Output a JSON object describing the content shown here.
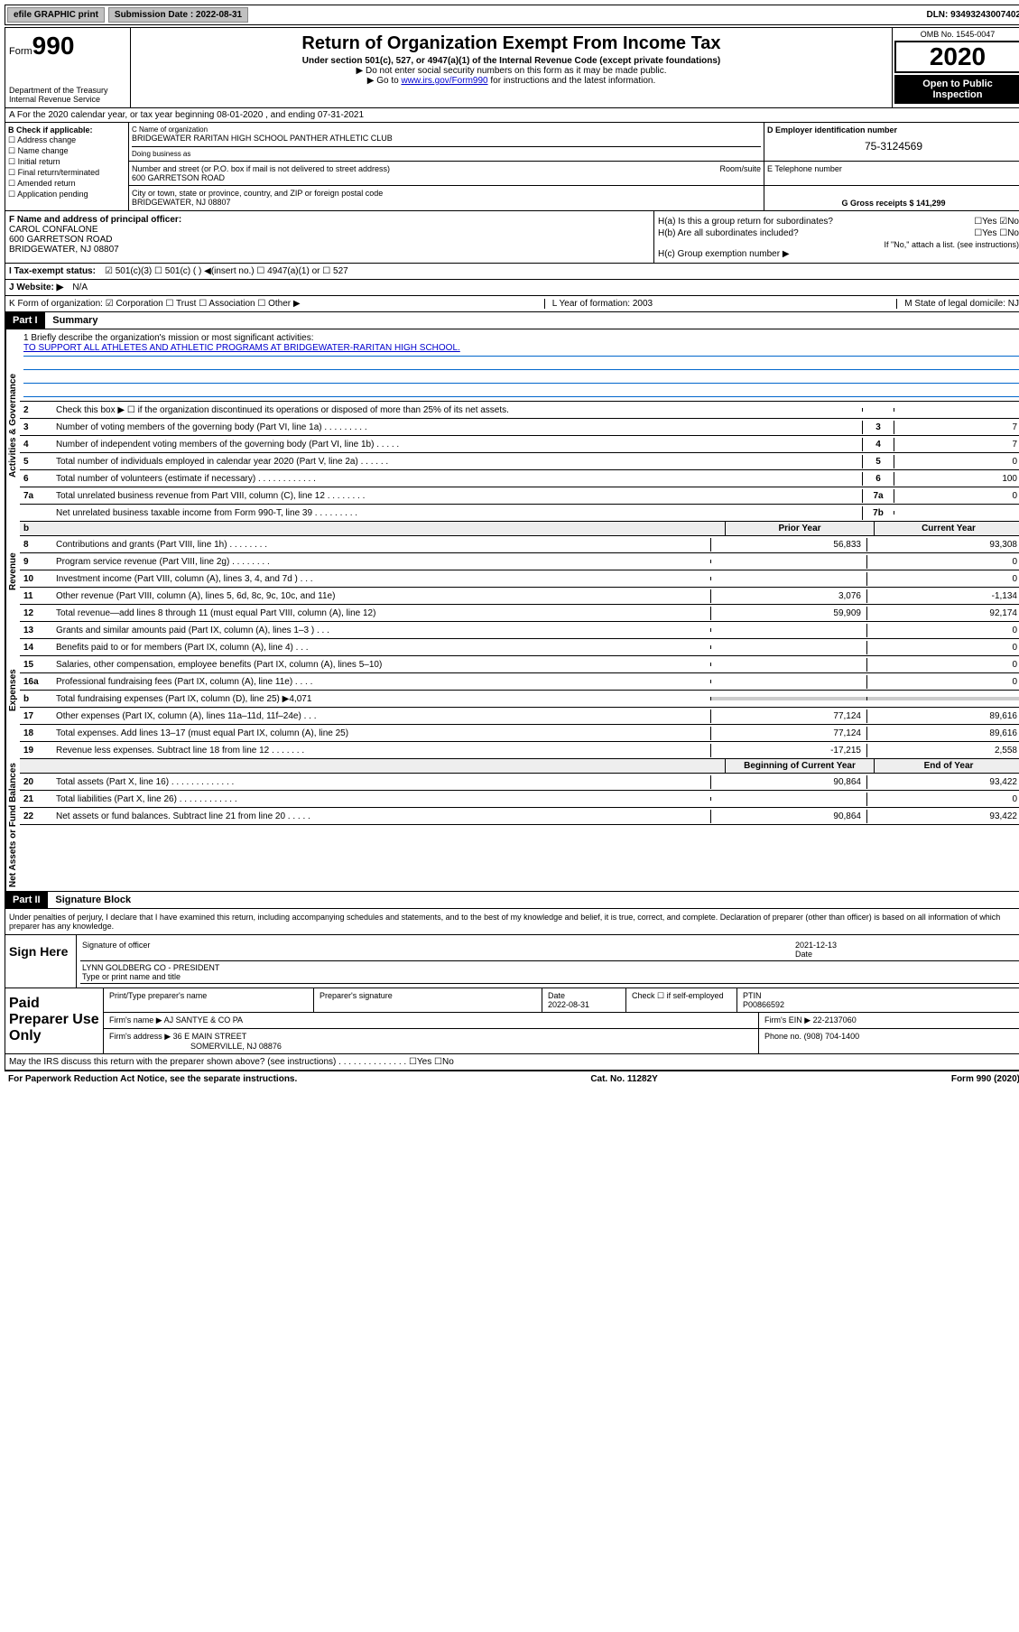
{
  "top_bar": {
    "efile": "efile GRAPHIC print",
    "submission_label": "Submission Date : 2022-08-31",
    "dln": "DLN: 93493243007402"
  },
  "header": {
    "form_label": "Form",
    "form_number": "990",
    "dept": "Department of the Treasury Internal Revenue Service",
    "title": "Return of Organization Exempt From Income Tax",
    "subtitle": "Under section 501(c), 527, or 4947(a)(1) of the Internal Revenue Code (except private foundations)",
    "note1": "▶ Do not enter social security numbers on this form as it may be made public.",
    "note2_pre": "▶ Go to ",
    "note2_link": "www.irs.gov/Form990",
    "note2_post": " for instructions and the latest information.",
    "omb": "OMB No. 1545-0047",
    "year": "2020",
    "open": "Open to Public Inspection"
  },
  "row_a": "A For the 2020 calendar year, or tax year beginning 08-01-2020    , and ending 07-31-2021",
  "check_b": {
    "title": "B Check if applicable:",
    "items": [
      "Address change",
      "Name change",
      "Initial return",
      "Final return/terminated",
      "Amended return",
      "Application pending"
    ]
  },
  "name_block": {
    "c_label": "C Name of organization",
    "name": "BRIDGEWATER RARITAN HIGH SCHOOL PANTHER ATHLETIC CLUB",
    "dba_label": "Doing business as",
    "addr_label": "Number and street (or P.O. box if mail is not delivered to street address)",
    "room_label": "Room/suite",
    "addr": "600 GARRETSON ROAD",
    "city_label": "City or town, state or province, country, and ZIP or foreign postal code",
    "city": "BRIDGEWATER, NJ  08807"
  },
  "d_block": {
    "label": "D Employer identification number",
    "ein": "75-3124569",
    "e_label": "E Telephone number",
    "g_label": "G Gross receipts $ 141,299"
  },
  "f_block": {
    "label": "F Name and address of principal officer:",
    "name": "CAROL CONFALONE",
    "addr1": "600 GARRETSON ROAD",
    "addr2": "BRIDGEWATER, NJ  08807"
  },
  "h_block": {
    "ha": "H(a)  Is this a group return for subordinates?",
    "ha_ans": "☐Yes ☑No",
    "hb": "H(b)  Are all subordinates included?",
    "hb_ans": "☐Yes ☐No",
    "hb_note": "If \"No,\" attach a list. (see instructions)",
    "hc": "H(c)  Group exemption number ▶"
  },
  "line_i": {
    "label": "I  Tax-exempt status:",
    "opts": "☑ 501(c)(3)    ☐ 501(c) (  ) ◀(insert no.)    ☐ 4947(a)(1) or  ☐ 527"
  },
  "line_j": {
    "label": "J  Website: ▶",
    "val": "N/A"
  },
  "line_k": {
    "label": "K Form of organization:  ☑ Corporation  ☐ Trust  ☐ Association  ☐ Other ▶",
    "l": "L Year of formation: 2003",
    "m": "M State of legal domicile: NJ"
  },
  "part1": {
    "header": "Part I",
    "title": "Summary"
  },
  "mission": {
    "label": "1  Briefly describe the organization's mission or most significant activities:",
    "text": "TO SUPPORT ALL ATHLETES AND ATHLETIC PROGRAMS AT BRIDGEWATER-RARITAN HIGH SCHOOL."
  },
  "governance_rows": [
    {
      "num": "2",
      "desc": "Check this box ▶ ☐  if the organization discontinued its operations or disposed of more than 25% of its net assets.",
      "label": "",
      "val": ""
    },
    {
      "num": "3",
      "desc": "Number of voting members of the governing body (Part VI, line 1a)   .    .    .    .    .    .    .    .    .",
      "label": "3",
      "val": "7"
    },
    {
      "num": "4",
      "desc": "Number of independent voting members of the governing body (Part VI, line 1b)   .    .    .    .    .",
      "label": "4",
      "val": "7"
    },
    {
      "num": "5",
      "desc": "Total number of individuals employed in calendar year 2020 (Part V, line 2a)   .    .    .    .    .    .",
      "label": "5",
      "val": "0"
    },
    {
      "num": "6",
      "desc": "Total number of volunteers (estimate if necessary)   .    .    .    .    .    .    .    .    .    .    .    .",
      "label": "6",
      "val": "100"
    },
    {
      "num": "7a",
      "desc": "Total unrelated business revenue from Part VIII, column (C), line 12   .    .    .    .    .    .    .    .",
      "label": "7a",
      "val": "0"
    },
    {
      "num": "",
      "desc": "Net unrelated business taxable income from Form 990-T, line 39   .    .    .    .    .    .    .    .    .",
      "label": "7b",
      "val": ""
    }
  ],
  "col_prior": "Prior Year",
  "col_current": "Current Year",
  "revenue_rows": [
    {
      "num": "8",
      "desc": "Contributions and grants (Part VIII, line 1h)   .    .    .    .    .    .    .    .",
      "prior": "56,833",
      "curr": "93,308"
    },
    {
      "num": "9",
      "desc": "Program service revenue (Part VIII, line 2g)   .    .    .    .    .    .    .    .",
      "prior": "",
      "curr": "0"
    },
    {
      "num": "10",
      "desc": "Investment income (Part VIII, column (A), lines 3, 4, and 7d )   .    .    .",
      "prior": "",
      "curr": "0"
    },
    {
      "num": "11",
      "desc": "Other revenue (Part VIII, column (A), lines 5, 6d, 8c, 9c, 10c, and 11e)",
      "prior": "3,076",
      "curr": "-1,134"
    },
    {
      "num": "12",
      "desc": "Total revenue—add lines 8 through 11 (must equal Part VIII, column (A), line 12)",
      "prior": "59,909",
      "curr": "92,174"
    }
  ],
  "expense_rows": [
    {
      "num": "13",
      "desc": "Grants and similar amounts paid (Part IX, column (A), lines 1–3 )   .    .    .",
      "prior": "",
      "curr": "0"
    },
    {
      "num": "14",
      "desc": "Benefits paid to or for members (Part IX, column (A), line 4)   .    .    .",
      "prior": "",
      "curr": "0"
    },
    {
      "num": "15",
      "desc": "Salaries, other compensation, employee benefits (Part IX, column (A), lines 5–10)",
      "prior": "",
      "curr": "0"
    },
    {
      "num": "16a",
      "desc": "Professional fundraising fees (Part IX, column (A), line 11e)   .    .    .    .",
      "prior": "",
      "curr": "0"
    },
    {
      "num": "b",
      "desc": "Total fundraising expenses (Part IX, column (D), line 25) ▶4,071",
      "prior": "GRAY",
      "curr": "GRAY"
    },
    {
      "num": "17",
      "desc": "Other expenses (Part IX, column (A), lines 11a–11d, 11f–24e)   .    .    .",
      "prior": "77,124",
      "curr": "89,616"
    },
    {
      "num": "18",
      "desc": "Total expenses. Add lines 13–17 (must equal Part IX, column (A), line 25)",
      "prior": "77,124",
      "curr": "89,616"
    },
    {
      "num": "19",
      "desc": "Revenue less expenses. Subtract line 18 from line 12   .    .    .    .    .    .    .",
      "prior": "-17,215",
      "curr": "2,558"
    }
  ],
  "col_begin": "Beginning of Current Year",
  "col_end": "End of Year",
  "netassets_rows": [
    {
      "num": "20",
      "desc": "Total assets (Part X, line 16)   .    .    .    .    .    .    .    .    .    .    .    .    .",
      "prior": "90,864",
      "curr": "93,422"
    },
    {
      "num": "21",
      "desc": "Total liabilities (Part X, line 26)   .    .    .    .    .    .    .    .    .    .    .    .",
      "prior": "",
      "curr": "0"
    },
    {
      "num": "22",
      "desc": "Net assets or fund balances. Subtract line 21 from line 20   .    .    .    .    .",
      "prior": "90,864",
      "curr": "93,422"
    }
  ],
  "part2": {
    "header": "Part II",
    "title": "Signature Block"
  },
  "sig_declaration": "Under penalties of perjury, I declare that I have examined this return, including accompanying schedules and statements, and to the best of my knowledge and belief, it is true, correct, and complete. Declaration of preparer (other than officer) is based on all information of which preparer has any knowledge.",
  "sign_here": "Sign Here",
  "sig_officer_label": "Signature of officer",
  "sig_date": "2021-12-13",
  "sig_date_label": "Date",
  "sig_name": "LYNN GOLDBERG CO - PRESIDENT",
  "sig_name_label": "Type or print name and title",
  "paid_prep": "Paid Preparer Use Only",
  "prep_headers": {
    "name": "Print/Type preparer's name",
    "sig": "Preparer's signature",
    "date": "Date",
    "date_val": "2022-08-31",
    "check": "Check ☐ if self-employed",
    "ptin_label": "PTIN",
    "ptin": "P00866592"
  },
  "firm_name_label": "Firm's name    ▶",
  "firm_name": "AJ SANTYE & CO PA",
  "firm_ein_label": "Firm's EIN ▶",
  "firm_ein": "22-2137060",
  "firm_addr_label": "Firm's address ▶",
  "firm_addr1": "36 E MAIN STREET",
  "firm_addr2": "SOMERVILLE, NJ  08876",
  "phone_label": "Phone no.",
  "phone": "(908) 704-1400",
  "irs_discuss": "May the IRS discuss this return with the preparer shown above? (see instructions)   .    .    .    .    .    .    .    .    .    .    .    .    .    .    ☐Yes  ☐No",
  "footer_left": "For Paperwork Reduction Act Notice, see the separate instructions.",
  "footer_mid": "Cat. No. 11282Y",
  "footer_right": "Form 990 (2020)",
  "vlabels": {
    "gov": "Activities & Governance",
    "rev": "Revenue",
    "exp": "Expenses",
    "net": "Net Assets or Fund Balances"
  }
}
